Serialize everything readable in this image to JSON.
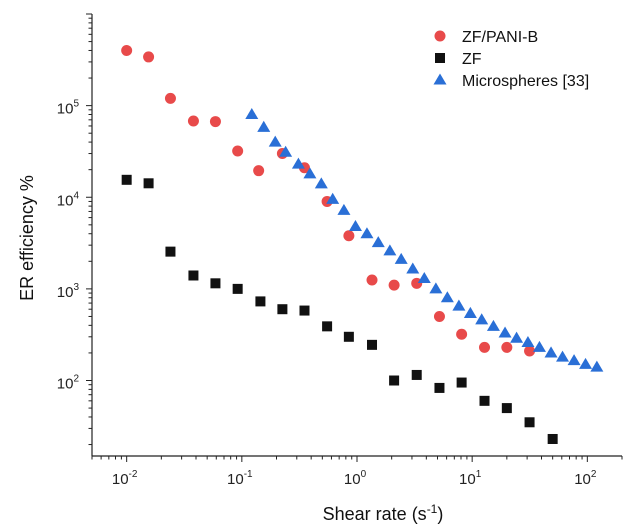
{
  "chart_data": {
    "type": "scatter",
    "title": "",
    "xlabel": "Shear rate (s",
    "xlabel_sup": "-1",
    "xlabel_suffix": ")",
    "ylabel": "ER efficiency %",
    "xscale": "log",
    "yscale": "log",
    "xlim": [
      0.005,
      200
    ],
    "ylim": [
      15,
      1000000
    ],
    "x_ticks": [
      {
        "base": "10",
        "exp": "-2",
        "value": 0.01
      },
      {
        "base": "10",
        "exp": "-1",
        "value": 0.1
      },
      {
        "base": "10",
        "exp": "0",
        "value": 1
      },
      {
        "base": "10",
        "exp": "1",
        "value": 10
      },
      {
        "base": "10",
        "exp": "2",
        "value": 100
      }
    ],
    "y_ticks": [
      {
        "base": "10",
        "exp": "2",
        "value": 100
      },
      {
        "base": "10",
        "exp": "3",
        "value": 1000
      },
      {
        "base": "10",
        "exp": "4",
        "value": 10000
      },
      {
        "base": "10",
        "exp": "5",
        "value": 100000
      }
    ],
    "legend_position": "top-right",
    "grid": false,
    "series": [
      {
        "name": "ZF/PANI-B",
        "marker": "circle",
        "color": "#e84a4a",
        "x": [
          0.01,
          0.0155,
          0.024,
          0.038,
          0.059,
          0.092,
          0.14,
          0.225,
          0.35,
          0.55,
          0.85,
          1.35,
          2.1,
          3.3,
          5.2,
          8.1,
          12.8,
          20,
          31.5
        ],
        "y": [
          400000,
          340000,
          120000,
          68000,
          67000,
          32000,
          19500,
          30000,
          21000,
          9000,
          3800,
          1250,
          1100,
          1150,
          500,
          320,
          230,
          230,
          210
        ]
      },
      {
        "name": "ZF",
        "marker": "square",
        "color": "#111111",
        "x": [
          0.01,
          0.0155,
          0.024,
          0.038,
          0.059,
          0.092,
          0.145,
          0.225,
          0.35,
          0.55,
          0.85,
          1.35,
          2.1,
          3.3,
          5.2,
          8.1,
          12.8,
          20,
          31.5,
          50
        ],
        "y": [
          15500,
          14200,
          2550,
          1400,
          1150,
          1000,
          730,
          600,
          580,
          390,
          300,
          245,
          100,
          115,
          83,
          95,
          60,
          50,
          35,
          23
        ]
      },
      {
        "name": "Microspheres [33]",
        "marker": "triangle",
        "color": "#2a6fd6",
        "x": [
          0.122,
          0.155,
          0.195,
          0.24,
          0.31,
          0.39,
          0.49,
          0.615,
          0.77,
          0.97,
          1.22,
          1.53,
          1.93,
          2.42,
          3.05,
          3.84,
          4.84,
          6.09,
          7.67,
          9.65,
          12.1,
          15.3,
          19.3,
          24.3,
          30.5,
          38.4,
          48.4,
          60.9,
          76.7,
          96.5,
          121
        ],
        "y": [
          80000,
          58000,
          40000,
          31000,
          23000,
          18000,
          14000,
          9500,
          7200,
          4800,
          4000,
          3200,
          2600,
          2100,
          1650,
          1300,
          1000,
          800,
          650,
          540,
          460,
          390,
          330,
          290,
          260,
          230,
          200,
          180,
          165,
          150,
          140
        ]
      }
    ]
  }
}
